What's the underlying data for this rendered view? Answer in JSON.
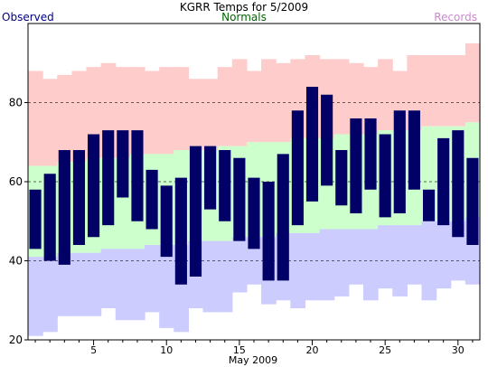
{
  "chart_data": {
    "type": "bar",
    "title": "KGRR Temps for 5/2009",
    "xlabel": "May 2009",
    "ylabel": "",
    "ylim": [
      20,
      100
    ],
    "yticks": [
      20,
      40,
      60,
      80
    ],
    "xticks": [
      5,
      10,
      15,
      20,
      25,
      30
    ],
    "grid": "dashed horizontal lines at 40, 60, 80",
    "legend": {
      "observed": "Observed",
      "normals": "Normals",
      "records": "Records",
      "placement": "top"
    },
    "colors": {
      "observed": "#000066",
      "normals": "#ccffcc",
      "records_high": "#ffcccc",
      "records_low": "#ccccff",
      "observed_label": "#000080",
      "normals_label": "#006600",
      "records_label": "#cc88cc"
    },
    "days": [
      1,
      2,
      3,
      4,
      5,
      6,
      7,
      8,
      9,
      10,
      11,
      12,
      13,
      14,
      15,
      16,
      17,
      18,
      19,
      20,
      21,
      22,
      23,
      24,
      25,
      26,
      27,
      28,
      29,
      30,
      31
    ],
    "series": [
      {
        "name": "Observed",
        "key": "obs_high",
        "values": [
          58,
          62,
          68,
          68,
          72,
          73,
          73,
          73,
          63,
          59,
          61,
          69,
          69,
          68,
          66,
          61,
          60,
          67,
          78,
          84,
          82,
          68,
          76,
          76,
          72,
          78,
          78,
          58,
          71,
          73,
          66
        ]
      },
      {
        "name": "Observed",
        "key": "obs_low",
        "values": [
          43,
          40,
          39,
          44,
          46,
          49,
          56,
          50,
          48,
          41,
          34,
          36,
          53,
          50,
          45,
          43,
          35,
          35,
          49,
          55,
          59,
          54,
          52,
          58,
          51,
          52,
          58,
          50,
          49,
          46,
          44
        ]
      },
      {
        "name": "Normals",
        "key": "normal_high",
        "values": [
          64,
          64,
          65,
          65,
          66,
          66,
          66,
          67,
          67,
          67,
          68,
          68,
          68,
          69,
          69,
          70,
          70,
          70,
          71,
          71,
          71,
          72,
          72,
          72,
          73,
          73,
          73,
          74,
          74,
          74,
          75
        ]
      },
      {
        "name": "Normals",
        "key": "normal_low",
        "values": [
          41,
          41,
          42,
          42,
          42,
          43,
          43,
          43,
          44,
          44,
          44,
          45,
          45,
          45,
          46,
          46,
          46,
          47,
          47,
          47,
          48,
          48,
          48,
          48,
          49,
          49,
          49,
          50,
          50,
          50,
          51
        ]
      },
      {
        "name": "Records",
        "key": "record_high",
        "values": [
          88,
          86,
          87,
          88,
          89,
          90,
          89,
          89,
          88,
          89,
          89,
          86,
          86,
          89,
          91,
          88,
          91,
          90,
          91,
          92,
          91,
          91,
          90,
          89,
          91,
          88,
          92,
          92,
          92,
          92,
          95
        ]
      },
      {
        "name": "Records",
        "key": "record_low",
        "values": [
          21,
          22,
          26,
          26,
          26,
          28,
          25,
          25,
          27,
          23,
          22,
          28,
          27,
          27,
          32,
          34,
          29,
          30,
          28,
          30,
          30,
          31,
          34,
          30,
          33,
          31,
          34,
          30,
          33,
          35,
          34
        ]
      }
    ]
  }
}
